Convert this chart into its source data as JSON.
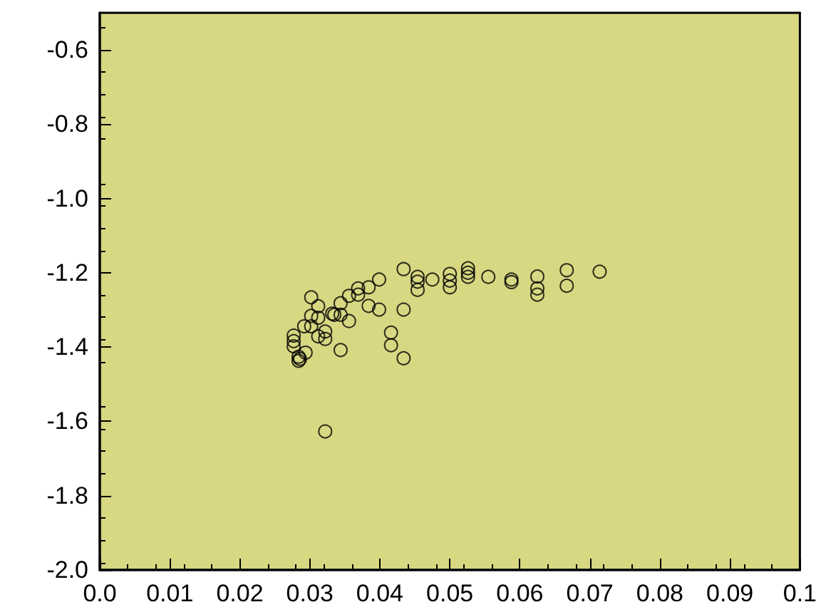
{
  "chart_data": {
    "type": "scatter",
    "marker": "circle",
    "xlim": [
      0,
      0.1
    ],
    "xticks": [
      {
        "value": 0,
        "label": "0.0"
      },
      0.01,
      0.02,
      0.03,
      0.04,
      0.05,
      0.06,
      0.07,
      0.08,
      0.09,
      {
        "value": 0.1,
        "label": "0.1"
      }
    ],
    "ylim": [
      -2.0,
      -0.5
    ],
    "yticks": [
      {
        "value": -2.0,
        "label": "-2.0"
      },
      -1.8,
      -1.6,
      -1.4,
      -1.2,
      {
        "value": -1.0,
        "label": "-1.0"
      },
      -0.8,
      -0.6
    ],
    "series": [
      {
        "color": "#000000",
        "x": [
          0.0277,
          0.0277,
          0.0277,
          0.0284,
          0.0284,
          0.0286,
          0.0294,
          0.0292,
          0.0302,
          0.0302,
          0.0302,
          0.0312,
          0.0312,
          0.0312,
          0.0322,
          0.0322,
          0.0322,
          0.0332,
          0.0335,
          0.0344,
          0.0344,
          0.0344,
          0.0356,
          0.0356,
          0.0369,
          0.0369,
          0.0384,
          0.0384,
          0.0399,
          0.0399,
          0.0434,
          0.0434,
          0.0434,
          0.0416,
          0.0416,
          0.0454,
          0.0454,
          0.0454,
          0.0475,
          0.05,
          0.05,
          0.05,
          0.0526,
          0.0526,
          0.0526,
          0.0555,
          0.0588,
          0.0588,
          0.0625,
          0.0625,
          0.0625,
          0.0667,
          0.0667,
          0.0714
        ],
        "values": [
          -1.369,
          -1.384,
          -1.398,
          -1.426,
          -1.437,
          -1.432,
          -1.415,
          -1.344,
          -1.266,
          -1.316,
          -1.344,
          -1.29,
          -1.321,
          -1.371,
          -1.358,
          -1.378,
          -1.627,
          -1.31,
          -1.313,
          -1.282,
          -1.313,
          -1.408,
          -1.262,
          -1.33,
          -1.242,
          -1.259,
          -1.239,
          -1.289,
          -1.218,
          -1.299,
          -1.19,
          -1.299,
          -1.43,
          -1.361,
          -1.395,
          -1.211,
          -1.224,
          -1.246,
          -1.218,
          -1.203,
          -1.221,
          -1.239,
          -1.188,
          -1.2,
          -1.211,
          -1.211,
          -1.218,
          -1.225,
          -1.21,
          -1.242,
          -1.259,
          -1.193,
          -1.235,
          -1.197
        ]
      }
    ]
  }
}
